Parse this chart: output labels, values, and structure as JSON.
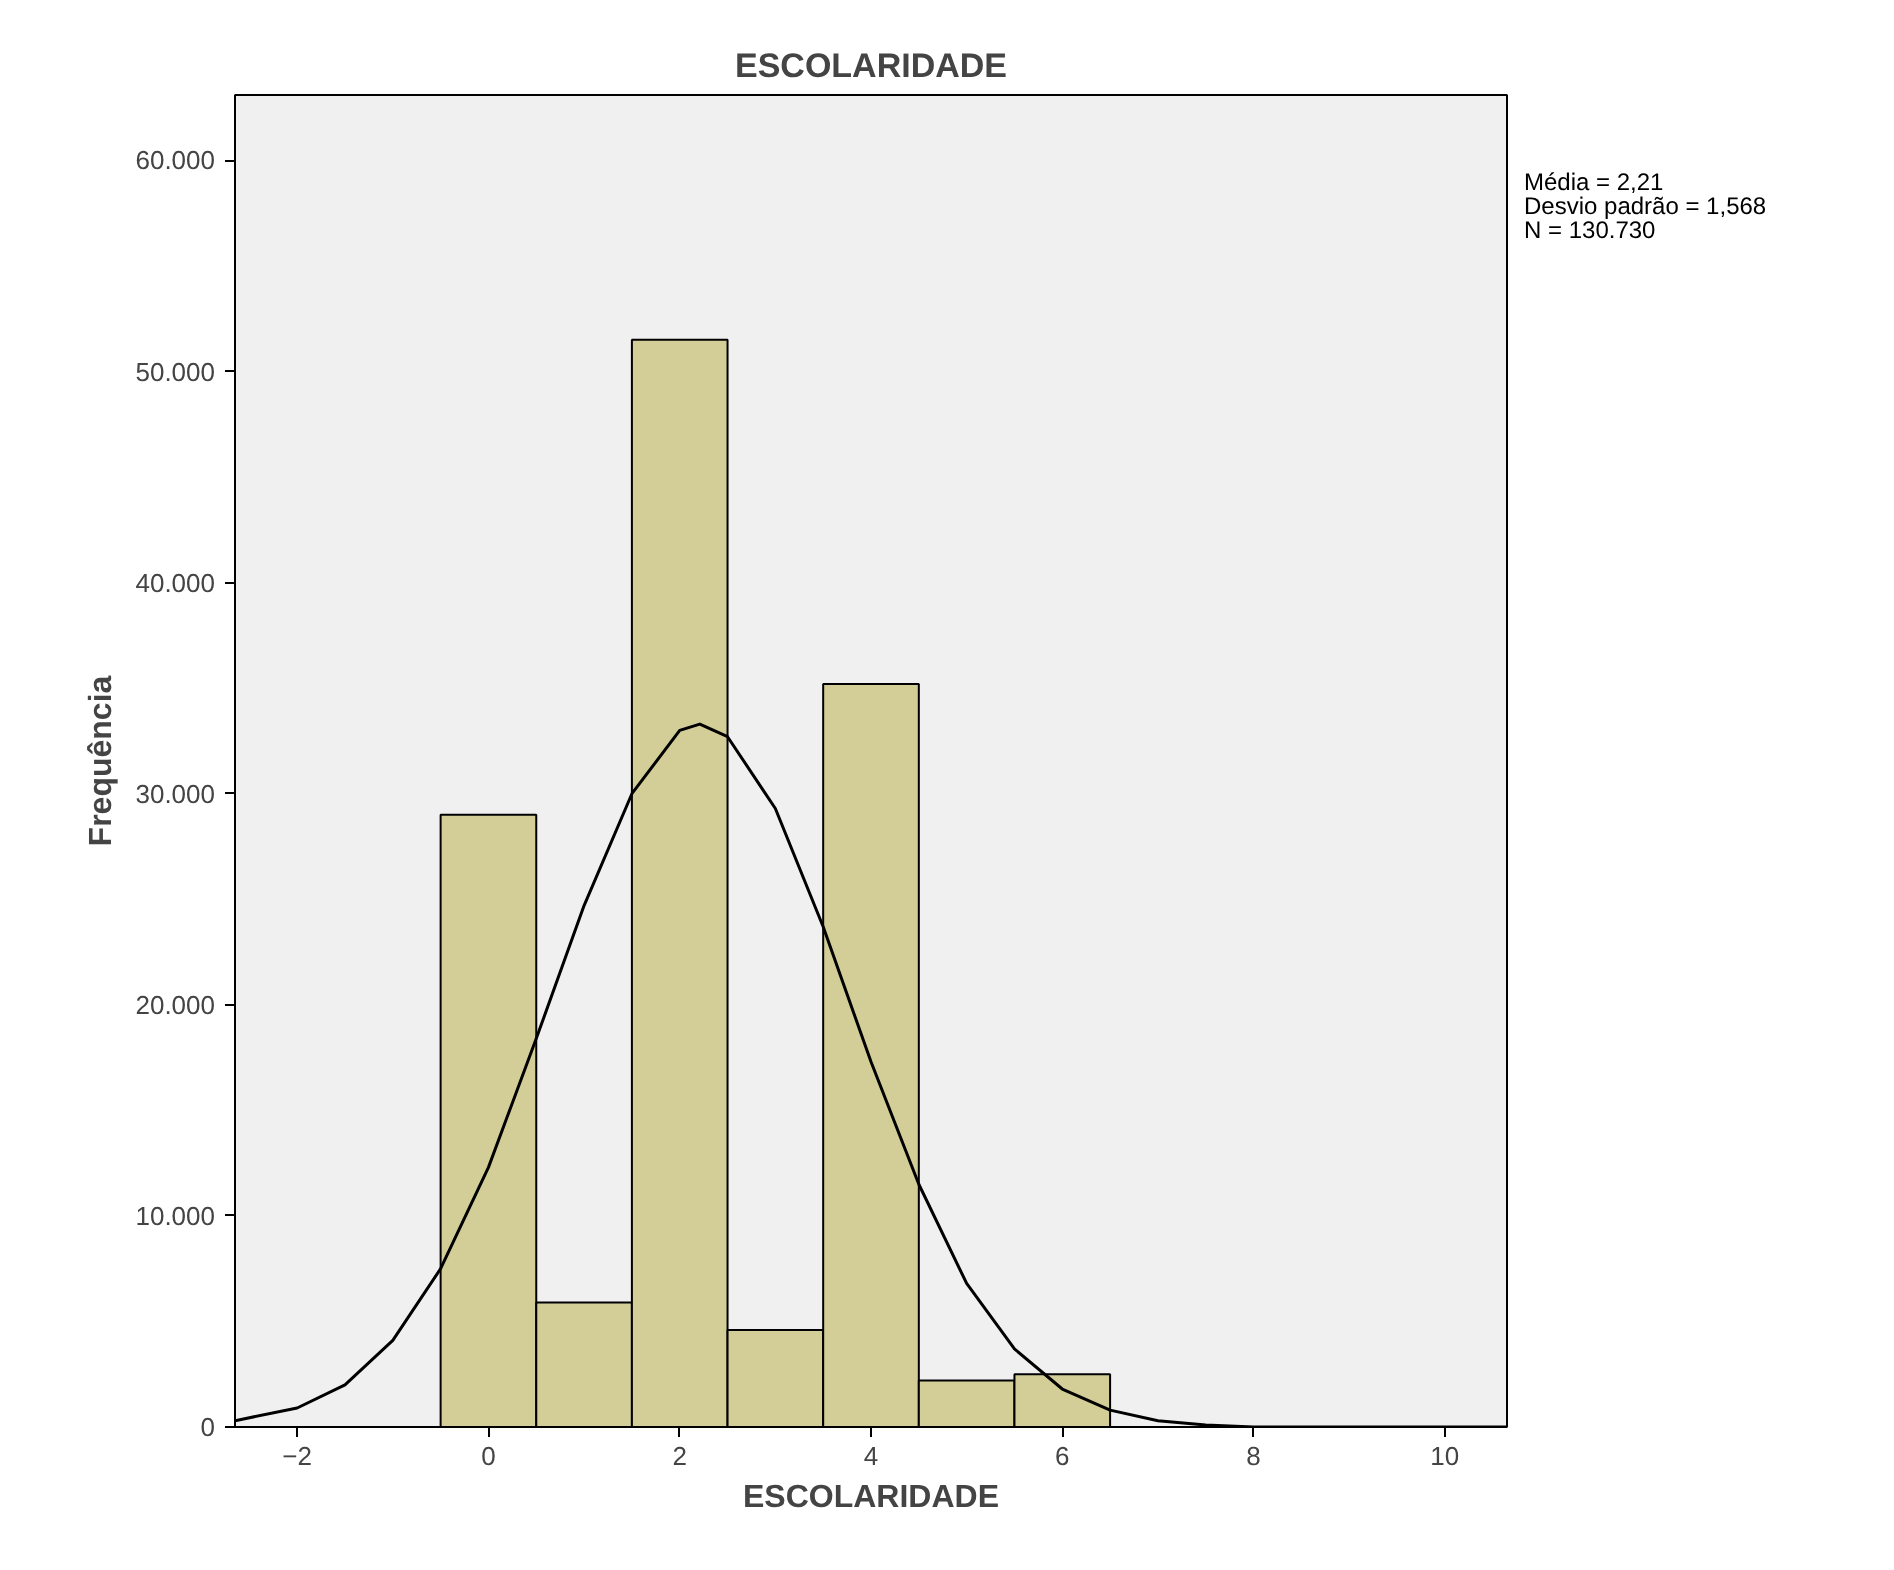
{
  "chart_data": {
    "type": "histogram",
    "title": "ESCOLARIDADE",
    "xlabel": "ESCOLARIDADE",
    "ylabel": "Frequência",
    "xlim": [
      -2.65,
      10.65
    ],
    "ylim": [
      0,
      63100
    ],
    "xticks": [
      -2,
      0,
      2,
      4,
      6,
      8,
      10
    ],
    "yticks": [
      0,
      {
        "value": 10000,
        "label": "10.000"
      },
      {
        "value": 20000,
        "label": "20.000"
      },
      {
        "value": 30000,
        "label": "30.000"
      },
      {
        "value": 40000,
        "label": "40.000"
      },
      {
        "value": 50000,
        "label": "50.000"
      },
      {
        "value": 60000,
        "label": "60.000"
      }
    ],
    "grid": false,
    "marker": "none",
    "line_style": "solid",
    "series": [
      {
        "color": "#d3ce97",
        "bins": [
          -0.5,
          0.5,
          1.5,
          2.5,
          3.5,
          4.5,
          5.5,
          6.5
        ],
        "values": [
          29000,
          5900,
          51500,
          4600,
          35200,
          2200,
          2500
        ]
      },
      {
        "type": "line",
        "color": "#000000",
        "x": [
          -2.65,
          -2,
          -1.5,
          -1,
          -0.5,
          0,
          0.5,
          1,
          1.5,
          2,
          2.21,
          2.5,
          3,
          3.5,
          4,
          4.5,
          5,
          5.5,
          6,
          6.5,
          7,
          7.5,
          8,
          9,
          10,
          10.65
        ],
        "values": [
          300,
          900,
          2000,
          4100,
          7500,
          12300,
          18400,
          24700,
          30000,
          33000,
          33300,
          32700,
          29300,
          23700,
          17300,
          11500,
          6800,
          3700,
          1800,
          800,
          300,
          100,
          0,
          0,
          0,
          0
        ]
      }
    ],
    "annotations": [
      "Média = 2,21",
      "Desvio padrão = 1,568",
      "N = 130.730"
    ]
  }
}
